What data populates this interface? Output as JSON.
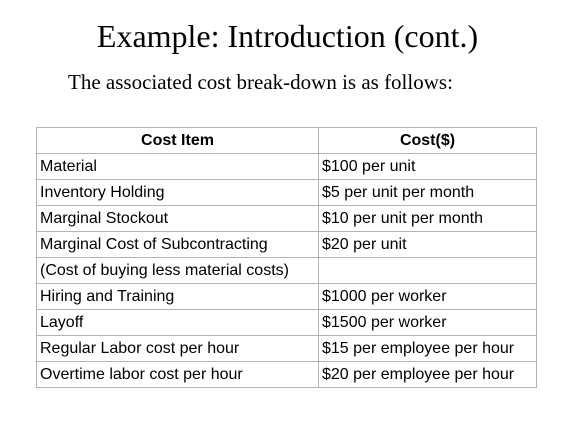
{
  "slide": {
    "title": "Example: Introduction (cont.)",
    "subtitle": "The associated cost break-down is as follows:"
  },
  "table": {
    "headers": [
      "Cost Item",
      "Cost($)"
    ],
    "rows": [
      [
        "Material",
        "$100 per unit"
      ],
      [
        "Inventory Holding",
        "$5 per unit per month"
      ],
      [
        "Marginal Stockout",
        "$10 per unit per month"
      ],
      [
        "Marginal Cost of Subcontracting",
        "$20 per unit"
      ],
      [
        "(Cost of buying less material costs)",
        ""
      ],
      [
        "Hiring and Training",
        "$1000 per worker"
      ],
      [
        "Layoff",
        "$1500 per worker"
      ],
      [
        "Regular Labor cost per hour",
        "$15 per employee per hour"
      ],
      [
        "Overtime labor cost per hour",
        "$20 per employee per hour"
      ]
    ]
  }
}
